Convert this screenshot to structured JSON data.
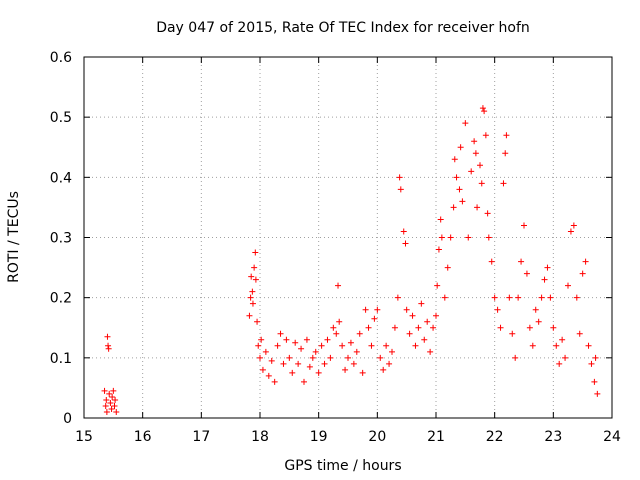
{
  "chart_data": {
    "type": "scatter",
    "title": "Day 047 of 2015, Rate Of TEC Index for receiver hofn",
    "xlabel": "GPS time / hours",
    "ylabel": "ROTI / TECUs",
    "xlim": [
      15,
      24
    ],
    "ylim": [
      0,
      0.6
    ],
    "x_ticks": [
      15,
      16,
      17,
      18,
      19,
      20,
      21,
      22,
      23,
      24
    ],
    "y_ticks": [
      0,
      0.1,
      0.2,
      0.3,
      0.4,
      0.5,
      0.6
    ],
    "x_tick_labels": [
      "15",
      "16",
      "17",
      "18",
      "19",
      "20",
      "21",
      "22",
      "23",
      "24"
    ],
    "y_tick_labels": [
      "0",
      "0.1",
      "0.2",
      "0.3",
      "0.4",
      "0.5",
      "0.6"
    ],
    "grid": true,
    "legend": "none",
    "marker": "+",
    "color": "#ff0000",
    "series": [
      {
        "points": [
          [
            15.35,
            0.045
          ],
          [
            15.37,
            0.02
          ],
          [
            15.38,
            0.03
          ],
          [
            15.39,
            0.01
          ],
          [
            15.4,
            0.135
          ],
          [
            15.41,
            0.12
          ],
          [
            15.42,
            0.115
          ],
          [
            15.43,
            0.04
          ],
          [
            15.45,
            0.025
          ],
          [
            15.47,
            0.015
          ],
          [
            15.48,
            0.035
          ],
          [
            15.5,
            0.045
          ],
          [
            15.52,
            0.02
          ],
          [
            15.53,
            0.03
          ],
          [
            15.55,
            0.01
          ],
          [
            17.82,
            0.17
          ],
          [
            17.84,
            0.2
          ],
          [
            17.85,
            0.235
          ],
          [
            17.87,
            0.21
          ],
          [
            17.88,
            0.19
          ],
          [
            17.9,
            0.25
          ],
          [
            17.92,
            0.275
          ],
          [
            17.93,
            0.23
          ],
          [
            17.95,
            0.16
          ],
          [
            17.97,
            0.12
          ],
          [
            18.0,
            0.1
          ],
          [
            18.02,
            0.13
          ],
          [
            18.05,
            0.08
          ],
          [
            18.1,
            0.11
          ],
          [
            18.15,
            0.07
          ],
          [
            18.2,
            0.095
          ],
          [
            18.25,
            0.06
          ],
          [
            18.3,
            0.12
          ],
          [
            18.35,
            0.14
          ],
          [
            18.4,
            0.09
          ],
          [
            18.45,
            0.13
          ],
          [
            18.5,
            0.1
          ],
          [
            18.55,
            0.075
          ],
          [
            18.6,
            0.125
          ],
          [
            18.65,
            0.09
          ],
          [
            18.7,
            0.115
          ],
          [
            18.75,
            0.06
          ],
          [
            18.8,
            0.13
          ],
          [
            18.85,
            0.085
          ],
          [
            18.9,
            0.1
          ],
          [
            18.95,
            0.11
          ],
          [
            19.0,
            0.075
          ],
          [
            19.05,
            0.12
          ],
          [
            19.1,
            0.09
          ],
          [
            19.15,
            0.13
          ],
          [
            19.2,
            0.1
          ],
          [
            19.25,
            0.15
          ],
          [
            19.3,
            0.14
          ],
          [
            19.33,
            0.22
          ],
          [
            19.35,
            0.16
          ],
          [
            19.4,
            0.12
          ],
          [
            19.45,
            0.08
          ],
          [
            19.5,
            0.1
          ],
          [
            19.55,
            0.125
          ],
          [
            19.6,
            0.09
          ],
          [
            19.65,
            0.11
          ],
          [
            19.7,
            0.14
          ],
          [
            19.75,
            0.075
          ],
          [
            19.8,
            0.18
          ],
          [
            19.85,
            0.15
          ],
          [
            19.9,
            0.12
          ],
          [
            19.95,
            0.165
          ],
          [
            20.0,
            0.18
          ],
          [
            20.05,
            0.1
          ],
          [
            20.1,
            0.08
          ],
          [
            20.15,
            0.12
          ],
          [
            20.2,
            0.09
          ],
          [
            20.25,
            0.11
          ],
          [
            20.3,
            0.15
          ],
          [
            20.35,
            0.2
          ],
          [
            20.38,
            0.4
          ],
          [
            20.4,
            0.38
          ],
          [
            20.45,
            0.31
          ],
          [
            20.48,
            0.29
          ],
          [
            20.5,
            0.18
          ],
          [
            20.55,
            0.14
          ],
          [
            20.6,
            0.17
          ],
          [
            20.65,
            0.12
          ],
          [
            20.7,
            0.15
          ],
          [
            20.75,
            0.19
          ],
          [
            20.8,
            0.13
          ],
          [
            20.85,
            0.16
          ],
          [
            20.9,
            0.11
          ],
          [
            20.95,
            0.15
          ],
          [
            21.0,
            0.17
          ],
          [
            21.02,
            0.22
          ],
          [
            21.05,
            0.28
          ],
          [
            21.08,
            0.33
          ],
          [
            21.1,
            0.3
          ],
          [
            21.15,
            0.2
          ],
          [
            21.2,
            0.25
          ],
          [
            21.25,
            0.3
          ],
          [
            21.3,
            0.35
          ],
          [
            21.32,
            0.43
          ],
          [
            21.35,
            0.4
          ],
          [
            21.4,
            0.38
          ],
          [
            21.42,
            0.45
          ],
          [
            21.45,
            0.36
          ],
          [
            21.5,
            0.49
          ],
          [
            21.55,
            0.3
          ],
          [
            21.6,
            0.41
          ],
          [
            21.65,
            0.46
          ],
          [
            21.68,
            0.44
          ],
          [
            21.7,
            0.35
          ],
          [
            21.75,
            0.42
          ],
          [
            21.78,
            0.39
          ],
          [
            21.8,
            0.515
          ],
          [
            21.82,
            0.51
          ],
          [
            21.85,
            0.47
          ],
          [
            21.88,
            0.34
          ],
          [
            21.9,
            0.3
          ],
          [
            21.95,
            0.26
          ],
          [
            22.0,
            0.2
          ],
          [
            22.05,
            0.18
          ],
          [
            22.1,
            0.15
          ],
          [
            22.15,
            0.39
          ],
          [
            22.18,
            0.44
          ],
          [
            22.2,
            0.47
          ],
          [
            22.25,
            0.2
          ],
          [
            22.3,
            0.14
          ],
          [
            22.35,
            0.1
          ],
          [
            22.4,
            0.2
          ],
          [
            22.45,
            0.26
          ],
          [
            22.5,
            0.32
          ],
          [
            22.55,
            0.24
          ],
          [
            22.6,
            0.15
          ],
          [
            22.65,
            0.12
          ],
          [
            22.7,
            0.18
          ],
          [
            22.75,
            0.16
          ],
          [
            22.8,
            0.2
          ],
          [
            22.85,
            0.23
          ],
          [
            22.9,
            0.25
          ],
          [
            22.95,
            0.2
          ],
          [
            23.0,
            0.15
          ],
          [
            23.05,
            0.12
          ],
          [
            23.1,
            0.09
          ],
          [
            23.15,
            0.13
          ],
          [
            23.2,
            0.1
          ],
          [
            23.25,
            0.22
          ],
          [
            23.3,
            0.31
          ],
          [
            23.35,
            0.32
          ],
          [
            23.4,
            0.2
          ],
          [
            23.45,
            0.14
          ],
          [
            23.5,
            0.24
          ],
          [
            23.55,
            0.26
          ],
          [
            23.6,
            0.12
          ],
          [
            23.65,
            0.09
          ],
          [
            23.7,
            0.06
          ],
          [
            23.72,
            0.1
          ],
          [
            23.75,
            0.04
          ]
        ]
      }
    ]
  }
}
